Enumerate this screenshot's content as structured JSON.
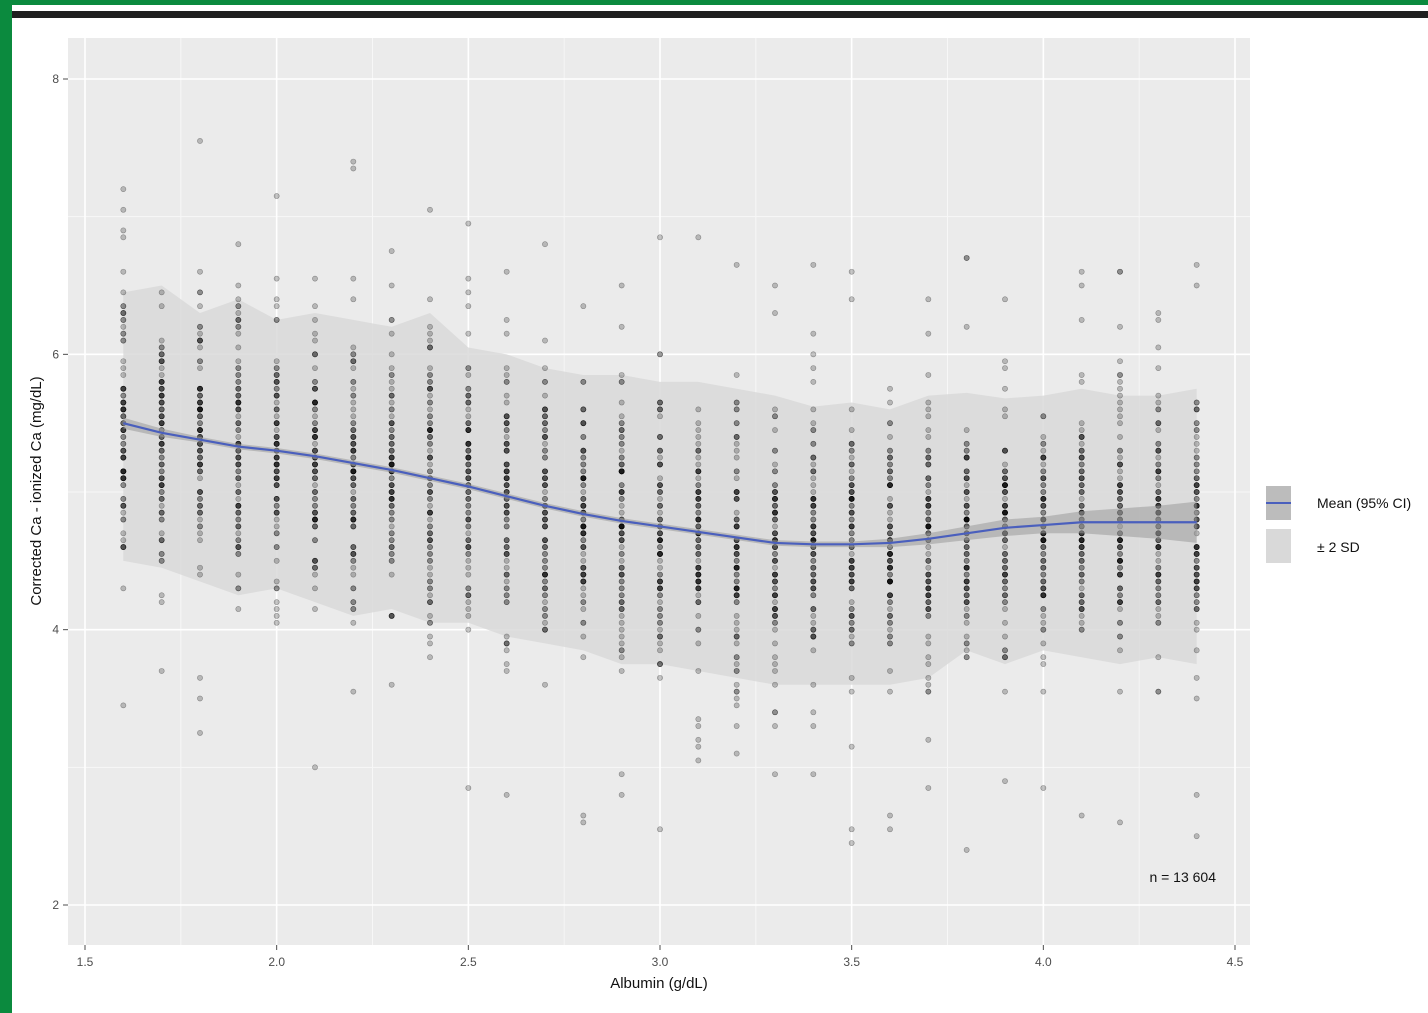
{
  "chart_data": {
    "type": "scatter",
    "title": "",
    "xlabel": "Albumin (g/dL)",
    "ylabel": "Corrected Ca - ionized Ca (mg/dL)",
    "xlim": [
      1.5,
      4.5
    ],
    "ylim": [
      2,
      8
    ],
    "x_ticks": [
      "1.5",
      "2.0",
      "2.5",
      "3.0",
      "3.5",
      "4.0",
      "4.5"
    ],
    "y_ticks": [
      "2",
      "4",
      "6",
      "8"
    ],
    "grid": true,
    "legend_position": "right",
    "legend": [
      {
        "label": "Mean (95% CI)",
        "color": "#4a5fbd"
      },
      {
        "label": "± 2 SD",
        "color": "#d9d9d9"
      }
    ],
    "annotation": "n = 13 604",
    "points_color": "#000000",
    "x_columns": [
      1.6,
      1.7,
      1.8,
      1.9,
      2.0,
      2.1,
      2.2,
      2.3,
      2.4,
      2.5,
      2.6,
      2.7,
      2.8,
      2.9,
      3.0,
      3.1,
      3.2,
      3.3,
      3.4,
      3.5,
      3.6,
      3.7,
      3.8,
      3.9,
      4.0,
      4.1,
      4.2,
      4.3,
      4.4
    ],
    "series": [
      {
        "name": "Mean (95% CI)",
        "x": [
          1.6,
          1.7,
          1.8,
          1.9,
          2.0,
          2.1,
          2.2,
          2.3,
          2.4,
          2.5,
          2.6,
          2.7,
          2.8,
          2.9,
          3.0,
          3.1,
          3.2,
          3.3,
          3.4,
          3.5,
          3.6,
          3.7,
          3.8,
          3.9,
          4.0,
          4.1,
          4.2,
          4.3,
          4.4
        ],
        "y": [
          5.5,
          5.43,
          5.38,
          5.33,
          5.3,
          5.26,
          5.21,
          5.16,
          5.1,
          5.04,
          4.97,
          4.9,
          4.84,
          4.79,
          4.75,
          4.71,
          4.67,
          4.63,
          4.62,
          4.62,
          4.63,
          4.66,
          4.7,
          4.74,
          4.76,
          4.78,
          4.78,
          4.78,
          4.78
        ],
        "ci_low": [
          5.46,
          5.4,
          5.36,
          5.31,
          5.28,
          5.24,
          5.19,
          5.14,
          5.08,
          5.02,
          4.95,
          4.88,
          4.82,
          4.77,
          4.73,
          4.69,
          4.65,
          4.61,
          4.6,
          4.6,
          4.6,
          4.62,
          4.65,
          4.68,
          4.7,
          4.7,
          4.68,
          4.66,
          4.63
        ],
        "ci_high": [
          5.54,
          5.46,
          5.4,
          5.35,
          5.32,
          5.28,
          5.23,
          5.18,
          5.12,
          5.06,
          4.99,
          4.92,
          4.86,
          4.81,
          4.77,
          4.73,
          4.69,
          4.65,
          4.64,
          4.64,
          4.66,
          4.7,
          4.75,
          4.8,
          4.82,
          4.86,
          4.88,
          4.9,
          4.93
        ]
      },
      {
        "name": "± 2 SD",
        "x": [
          1.6,
          1.7,
          1.8,
          1.9,
          2.0,
          2.1,
          2.2,
          2.3,
          2.4,
          2.5,
          2.6,
          2.7,
          2.8,
          2.9,
          3.0,
          3.1,
          3.2,
          3.3,
          3.4,
          3.5,
          3.6,
          3.7,
          3.8,
          3.9,
          4.0,
          4.1,
          4.2,
          4.3,
          4.4
        ],
        "upper": [
          6.45,
          6.5,
          6.3,
          6.4,
          6.25,
          6.3,
          6.25,
          6.2,
          6.3,
          6.05,
          6.0,
          5.9,
          5.85,
          5.85,
          5.8,
          5.8,
          5.75,
          5.7,
          5.62,
          5.65,
          5.6,
          5.7,
          5.72,
          5.68,
          5.7,
          5.75,
          5.7,
          5.7,
          5.75
        ],
        "lower": [
          4.5,
          4.45,
          4.35,
          4.25,
          4.3,
          4.2,
          4.1,
          4.15,
          4.05,
          4.05,
          3.95,
          3.9,
          3.85,
          3.75,
          3.75,
          3.7,
          3.65,
          3.6,
          3.6,
          3.6,
          3.6,
          3.65,
          3.85,
          3.75,
          3.85,
          3.8,
          3.75,
          3.8,
          3.75
        ]
      }
    ]
  }
}
